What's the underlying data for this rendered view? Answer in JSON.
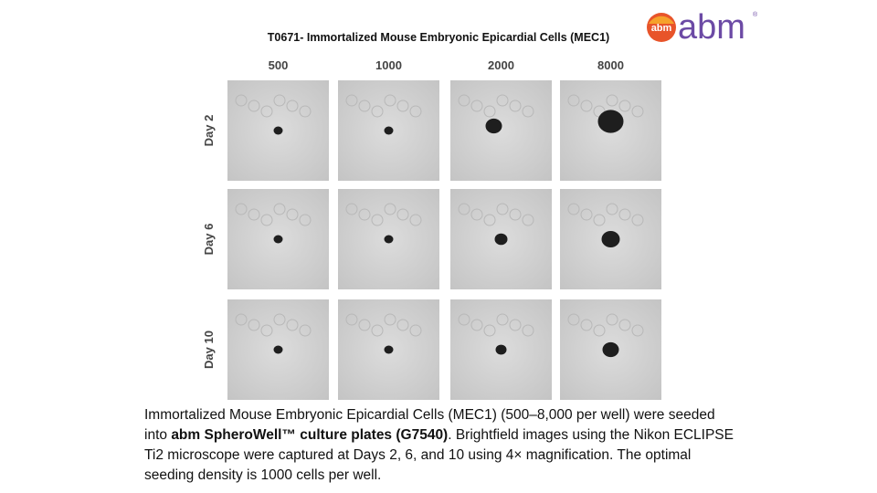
{
  "header": {
    "title": "T0671- Immortalized Mouse Embryonic Epicardial Cells (MEC1)"
  },
  "logo": {
    "badge": "abm",
    "wordmark": "abm",
    "mark": "®"
  },
  "grid": {
    "columns": [
      "500",
      "1000",
      "2000",
      "8000"
    ],
    "rows": [
      "Day 2",
      "Day 6",
      "Day 10"
    ]
  },
  "caption": {
    "runs": [
      {
        "text": "Immortalized Mouse Embryonic Epicardial Cells (MEC1) (500–8,000 per well) were seeded into ",
        "bold": false
      },
      {
        "text": "abm SpheroWell™ culture plates (G7540)",
        "bold": true
      },
      {
        "text": ". Brightfield images using the Nikon ECLIPSE Ti2 microscope were captured at Days 2, 6, and 10 using 4× magnification. The optimal seeding density is 1000 cells per well.",
        "bold": false
      }
    ]
  }
}
